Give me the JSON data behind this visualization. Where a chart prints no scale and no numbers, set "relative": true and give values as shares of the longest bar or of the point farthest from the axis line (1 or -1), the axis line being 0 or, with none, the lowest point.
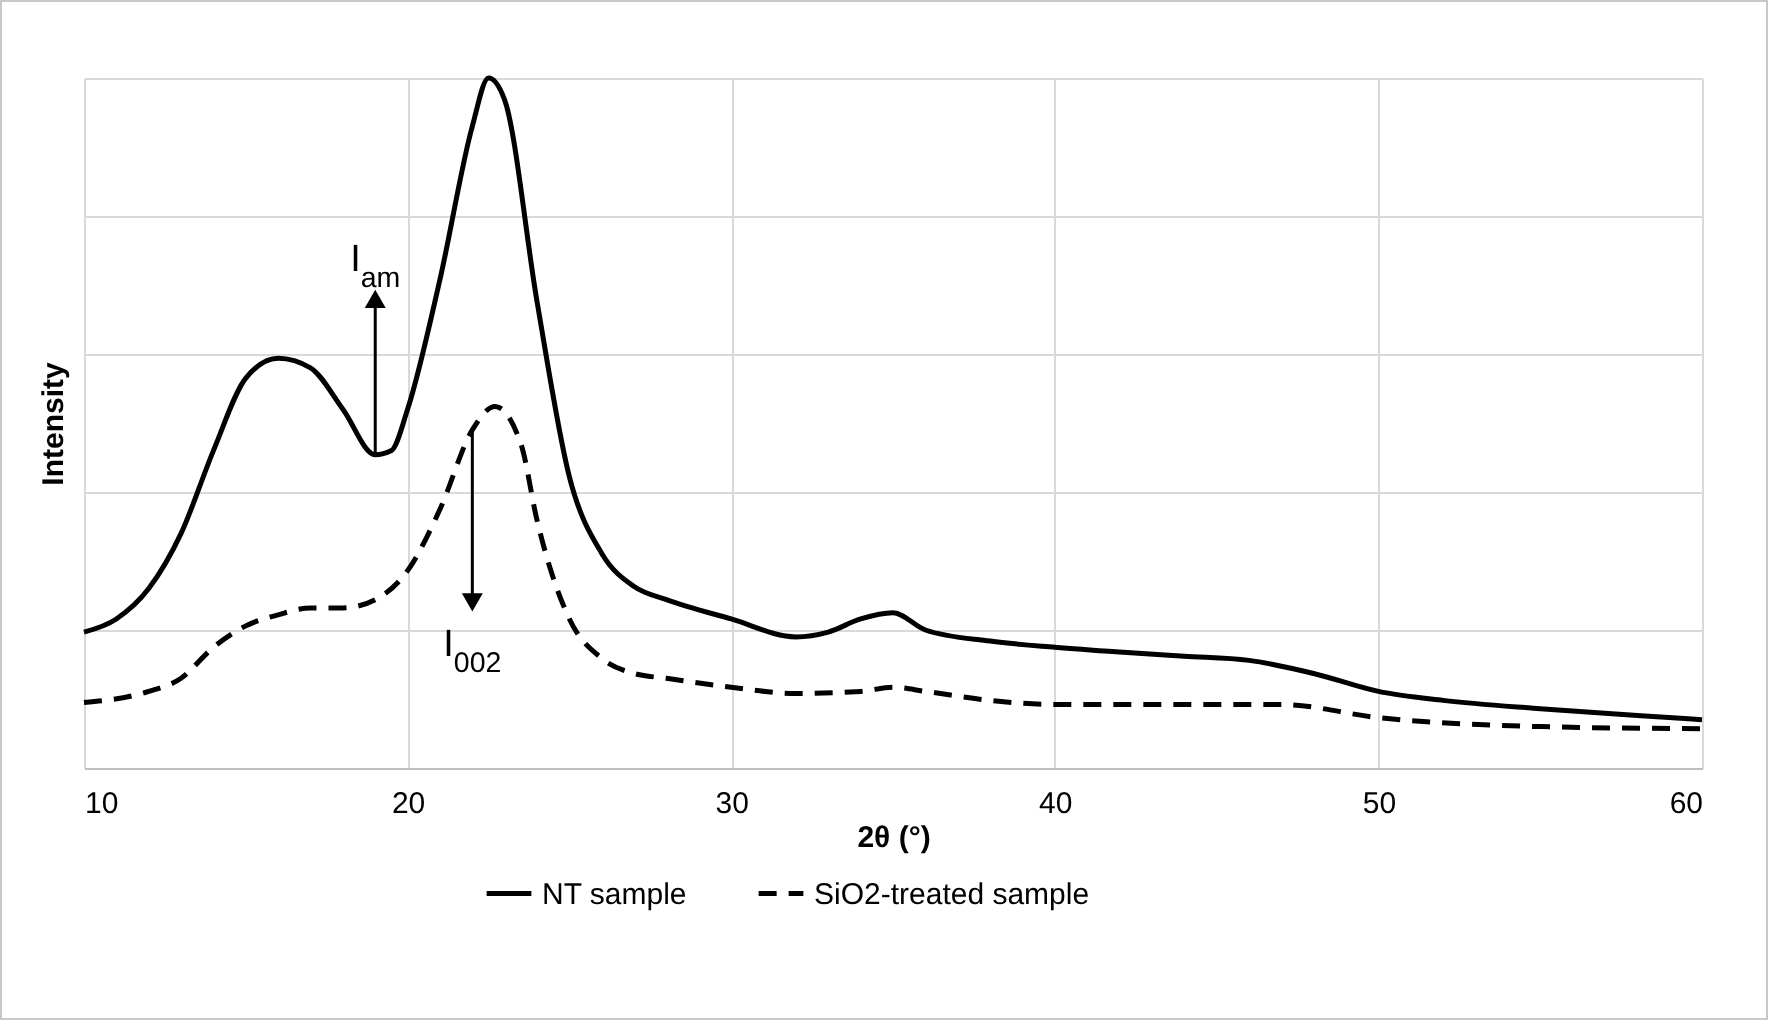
{
  "chart_data": {
    "type": "line",
    "xlabel": "2θ (°)",
    "ylabel": "Intensity",
    "relative": true,
    "xlim": [
      10,
      60
    ],
    "xticks": [
      10,
      20,
      30,
      40,
      50,
      60
    ],
    "grid": true,
    "legend": "bottom",
    "series": [
      {
        "name": "NT sample",
        "color": "#000000",
        "line_style": "solid",
        "x": [
          10,
          11,
          12,
          13,
          14,
          15,
          16,
          17,
          18,
          19,
          19.5,
          20,
          21,
          22,
          22.5,
          23,
          24,
          25,
          26,
          27,
          28,
          30,
          32,
          33,
          34,
          35,
          36,
          38,
          40,
          42,
          44,
          46,
          48,
          50,
          52,
          55,
          58,
          60
        ],
        "values": [
          0.197,
          0.216,
          0.26,
          0.34,
          0.46,
          0.565,
          0.594,
          0.58,
          0.52,
          0.454,
          0.46,
          0.52,
          0.708,
          0.93,
          1.0,
          0.968,
          0.676,
          0.422,
          0.311,
          0.263,
          0.244,
          0.216,
          0.19,
          0.197,
          0.216,
          0.225,
          0.2,
          0.184,
          0.175,
          0.168,
          0.162,
          0.156,
          0.137,
          0.111,
          0.098,
          0.086,
          0.076,
          0.07
        ]
      },
      {
        "name": "SiO2-treated sample",
        "color": "#000000",
        "line_style": "dashed",
        "x": [
          10,
          12,
          13,
          14,
          15,
          16,
          17,
          18,
          19,
          20,
          21,
          22,
          22.7,
          23.5,
          24,
          25,
          26,
          27,
          28,
          30,
          32,
          34,
          35,
          36,
          38,
          40,
          44,
          47,
          50,
          55,
          60
        ],
        "values": [
          0.095,
          0.111,
          0.13,
          0.175,
          0.206,
          0.222,
          0.232,
          0.232,
          0.244,
          0.286,
          0.375,
          0.49,
          0.524,
          0.47,
          0.359,
          0.216,
          0.159,
          0.137,
          0.13,
          0.117,
          0.108,
          0.111,
          0.117,
          0.111,
          0.098,
          0.092,
          0.092,
          0.092,
          0.073,
          0.06,
          0.057
        ]
      }
    ],
    "annotations": [
      {
        "text": "I$_{am}$",
        "x": 19,
        "y": 0.68
      },
      {
        "text": "I$_{002}$",
        "x": 22,
        "y": 0.24
      }
    ]
  }
}
